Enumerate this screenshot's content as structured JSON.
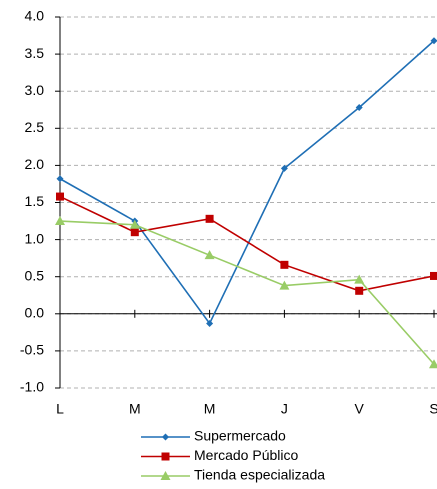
{
  "chart_data": {
    "type": "line",
    "categories": [
      "L",
      "M",
      "M",
      "J",
      "V",
      "S"
    ],
    "series": [
      {
        "name": "Supermercado",
        "color": "#1f6fb5",
        "marker": "diamond",
        "values": [
          1.82,
          1.25,
          -0.13,
          1.96,
          2.78,
          3.68
        ]
      },
      {
        "name": "Mercado Público",
        "color": "#c00000",
        "marker": "square",
        "values": [
          1.58,
          1.1,
          1.28,
          0.66,
          0.31,
          0.51
        ]
      },
      {
        "name": "Tienda especializada",
        "color": "#99cc66",
        "marker": "triangle",
        "values": [
          1.25,
          1.2,
          0.79,
          0.38,
          0.46,
          -0.68
        ]
      }
    ],
    "ylim": [
      -1.0,
      4.0
    ],
    "yticks": [
      {
        "value": -1.0,
        "label": "-1.0"
      },
      {
        "value": -0.5,
        "label": "-0.5"
      },
      {
        "value": 0,
        "label": "0.0"
      },
      {
        "value": 0.5,
        "label": "0.5"
      },
      {
        "value": 1.0,
        "label": "1.0"
      },
      {
        "value": 1.5,
        "label": "1.5"
      },
      {
        "value": 2.0,
        "label": "2.0"
      },
      {
        "value": 2.5,
        "label": "2.5"
      },
      {
        "value": 3.0,
        "label": "3.0"
      },
      {
        "value": 3.5,
        "label": "3.5"
      },
      {
        "value": 4.0,
        "label": "4.0"
      }
    ],
    "grid": true,
    "legend": "bottom"
  }
}
